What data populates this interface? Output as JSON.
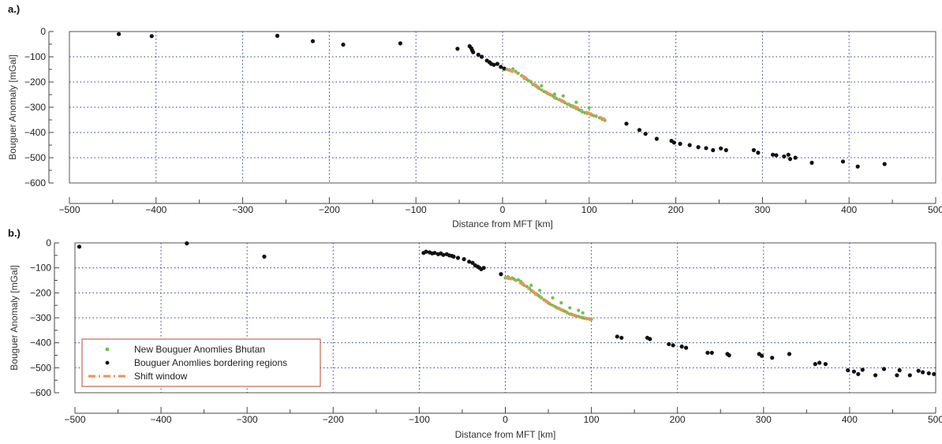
{
  "colors": {
    "bhutan": "#6cc24a",
    "bordering": "#111111",
    "shift": "#f0905a",
    "grid": "#2a3b8c",
    "legend_border": "#b84a2e"
  },
  "legend": {
    "items": [
      {
        "key": "bhutan",
        "label": "New Bouguer Anomlies Bhutan"
      },
      {
        "key": "bordering",
        "label": "Bouguer Anomlies bordering regions"
      },
      {
        "key": "shift",
        "label": "Shift window"
      }
    ]
  },
  "chart_data": [
    {
      "panel_label": "a.)",
      "type": "scatter",
      "xlabel": "Distance from MFT [km]",
      "ylabel": "Bouguer Anomaly [mGal]",
      "xlim": [
        -500,
        500
      ],
      "ylim": [
        -600,
        0
      ],
      "xticks": [
        -500,
        -400,
        -300,
        -200,
        -100,
        0,
        100,
        200,
        300,
        400,
        500
      ],
      "yticks": [
        0,
        -100,
        -200,
        -300,
        -400,
        -500,
        -600
      ],
      "grid": true,
      "series": [
        {
          "key": "bordering",
          "points": [
            [
              -443,
              -10
            ],
            [
              -405,
              -18
            ],
            [
              -260,
              -17
            ],
            [
              -219,
              -38
            ],
            [
              -184,
              -52
            ],
            [
              -118,
              -47
            ],
            [
              -52,
              -68
            ],
            [
              -38,
              -58
            ],
            [
              -36,
              -67
            ],
            [
              -35,
              -75
            ],
            [
              -34,
              -82
            ],
            [
              -28,
              -92
            ],
            [
              -24,
              -100
            ],
            [
              -18,
              -115
            ],
            [
              -15,
              -122
            ],
            [
              -13,
              -128
            ],
            [
              -10,
              -132
            ],
            [
              -6,
              -128
            ],
            [
              -2,
              -140
            ],
            [
              2,
              -147
            ],
            [
              143,
              -365
            ],
            [
              158,
              -390
            ],
            [
              165,
              -405
            ],
            [
              178,
              -425
            ],
            [
              195,
              -433
            ],
            [
              198,
              -440
            ],
            [
              205,
              -445
            ],
            [
              216,
              -450
            ],
            [
              226,
              -458
            ],
            [
              235,
              -462
            ],
            [
              243,
              -470
            ],
            [
              252,
              -463
            ],
            [
              258,
              -470
            ],
            [
              290,
              -470
            ],
            [
              295,
              -480
            ],
            [
              312,
              -488
            ],
            [
              316,
              -490
            ],
            [
              325,
              -495
            ],
            [
              330,
              -488
            ],
            [
              332,
              -505
            ],
            [
              338,
              -500
            ],
            [
              357,
              -520
            ],
            [
              393,
              -515
            ],
            [
              410,
              -535
            ],
            [
              441,
              -525
            ]
          ]
        },
        {
          "key": "bhutan",
          "points": [
            [
              5,
              -150
            ],
            [
              8,
              -152
            ],
            [
              12,
              -148
            ],
            [
              15,
              -158
            ],
            [
              18,
              -165
            ],
            [
              22,
              -175
            ],
            [
              25,
              -185
            ],
            [
              28,
              -190
            ],
            [
              30,
              -195
            ],
            [
              33,
              -200
            ],
            [
              35,
              -210
            ],
            [
              38,
              -215
            ],
            [
              40,
              -220
            ],
            [
              42,
              -225
            ],
            [
              45,
              -232
            ],
            [
              48,
              -238
            ],
            [
              50,
              -240
            ],
            [
              52,
              -246
            ],
            [
              55,
              -250
            ],
            [
              58,
              -255
            ],
            [
              60,
              -262
            ],
            [
              62,
              -265
            ],
            [
              65,
              -270
            ],
            [
              68,
              -275
            ],
            [
              70,
              -278
            ],
            [
              72,
              -282
            ],
            [
              75,
              -288
            ],
            [
              78,
              -292
            ],
            [
              80,
              -295
            ],
            [
              82,
              -300
            ],
            [
              85,
              -305
            ],
            [
              88,
              -310
            ],
            [
              90,
              -312
            ],
            [
              92,
              -318
            ],
            [
              95,
              -322
            ],
            [
              98,
              -325
            ],
            [
              100,
              -302
            ],
            [
              102,
              -330
            ],
            [
              105,
              -333
            ],
            [
              108,
              -336
            ],
            [
              112,
              -342
            ],
            [
              115,
              -348
            ],
            [
              118,
              -352
            ],
            [
              45,
              -215
            ],
            [
              60,
              -248
            ],
            [
              70,
              -255
            ],
            [
              85,
              -280
            ]
          ]
        },
        {
          "key": "shift",
          "points": [
            [
              5,
              -150
            ],
            [
              15,
              -162
            ],
            [
              25,
              -180
            ],
            [
              35,
              -205
            ],
            [
              45,
              -230
            ],
            [
              55,
              -250
            ],
            [
              65,
              -268
            ],
            [
              75,
              -285
            ],
            [
              85,
              -300
            ],
            [
              95,
              -318
            ],
            [
              105,
              -330
            ],
            [
              118,
              -348
            ]
          ]
        }
      ]
    },
    {
      "panel_label": "b.)",
      "type": "scatter",
      "xlabel": "Distance from MFT [km]",
      "ylabel": "Bouguer Anomaly [mGal]",
      "xlim": [
        -500,
        500
      ],
      "ylim": [
        -600,
        0
      ],
      "xticks": [
        -500,
        -400,
        -300,
        -200,
        -100,
        0,
        100,
        200,
        300,
        400,
        500
      ],
      "yticks": [
        0,
        -100,
        -200,
        -300,
        -400,
        -500,
        -600
      ],
      "grid": true,
      "legend": "bottom-left",
      "series": [
        {
          "key": "bordering",
          "points": [
            [
              -495,
              -15
            ],
            [
              -370,
              -2
            ],
            [
              -280,
              -55
            ],
            [
              -95,
              -40
            ],
            [
              -92,
              -35
            ],
            [
              -88,
              -38
            ],
            [
              -85,
              -42
            ],
            [
              -82,
              -40
            ],
            [
              -78,
              -45
            ],
            [
              -75,
              -42
            ],
            [
              -72,
              -48
            ],
            [
              -68,
              -45
            ],
            [
              -65,
              -50
            ],
            [
              -62,
              -52
            ],
            [
              -60,
              -55
            ],
            [
              -55,
              -60
            ],
            [
              -48,
              -65
            ],
            [
              -42,
              -75
            ],
            [
              -38,
              -80
            ],
            [
              -35,
              -90
            ],
            [
              -32,
              -95
            ],
            [
              -30,
              -100
            ],
            [
              -28,
              -105
            ],
            [
              -25,
              -100
            ],
            [
              -5,
              -125
            ],
            [
              130,
              -375
            ],
            [
              135,
              -380
            ],
            [
              165,
              -380
            ],
            [
              168,
              -385
            ],
            [
              190,
              -405
            ],
            [
              195,
              -410
            ],
            [
              205,
              -415
            ],
            [
              210,
              -420
            ],
            [
              235,
              -440
            ],
            [
              240,
              -440
            ],
            [
              258,
              -445
            ],
            [
              260,
              -450
            ],
            [
              295,
              -445
            ],
            [
              298,
              -452
            ],
            [
              310,
              -460
            ],
            [
              330,
              -445
            ],
            [
              360,
              -485
            ],
            [
              365,
              -480
            ],
            [
              372,
              -485
            ],
            [
              398,
              -510
            ],
            [
              405,
              -515
            ],
            [
              410,
              -525
            ],
            [
              415,
              -508
            ],
            [
              430,
              -530
            ],
            [
              440,
              -505
            ],
            [
              455,
              -530
            ],
            [
              458,
              -510
            ],
            [
              470,
              -530
            ],
            [
              480,
              -512
            ],
            [
              485,
              -518
            ],
            [
              492,
              -522
            ],
            [
              498,
              -525
            ]
          ]
        },
        {
          "key": "bhutan",
          "points": [
            [
              0,
              -140
            ],
            [
              3,
              -135
            ],
            [
              5,
              -142
            ],
            [
              8,
              -140
            ],
            [
              10,
              -145
            ],
            [
              12,
              -150
            ],
            [
              15,
              -148
            ],
            [
              18,
              -155
            ],
            [
              20,
              -162
            ],
            [
              22,
              -170
            ],
            [
              25,
              -175
            ],
            [
              28,
              -182
            ],
            [
              30,
              -190
            ],
            [
              32,
              -195
            ],
            [
              35,
              -205
            ],
            [
              38,
              -210
            ],
            [
              40,
              -215
            ],
            [
              42,
              -220
            ],
            [
              45,
              -228
            ],
            [
              48,
              -235
            ],
            [
              50,
              -240
            ],
            [
              52,
              -245
            ],
            [
              55,
              -250
            ],
            [
              58,
              -255
            ],
            [
              60,
              -260
            ],
            [
              62,
              -262
            ],
            [
              65,
              -268
            ],
            [
              68,
              -272
            ],
            [
              70,
              -275
            ],
            [
              72,
              -280
            ],
            [
              75,
              -285
            ],
            [
              78,
              -288
            ],
            [
              80,
              -290
            ],
            [
              82,
              -292
            ],
            [
              85,
              -295
            ],
            [
              88,
              -298
            ],
            [
              90,
              -300
            ],
            [
              92,
              -302
            ],
            [
              95,
              -304
            ],
            [
              98,
              -306
            ],
            [
              100,
              -305
            ],
            [
              55,
              -220
            ],
            [
              65,
              -240
            ],
            [
              75,
              -260
            ],
            [
              85,
              -270
            ],
            [
              90,
              -280
            ],
            [
              40,
              -190
            ],
            [
              30,
              -170
            ]
          ]
        },
        {
          "key": "shift",
          "points": [
            [
              0,
              -140
            ],
            [
              10,
              -145
            ],
            [
              20,
              -165
            ],
            [
              30,
              -190
            ],
            [
              40,
              -215
            ],
            [
              50,
              -240
            ],
            [
              60,
              -260
            ],
            [
              70,
              -275
            ],
            [
              80,
              -290
            ],
            [
              90,
              -300
            ],
            [
              100,
              -305
            ]
          ]
        }
      ]
    }
  ]
}
